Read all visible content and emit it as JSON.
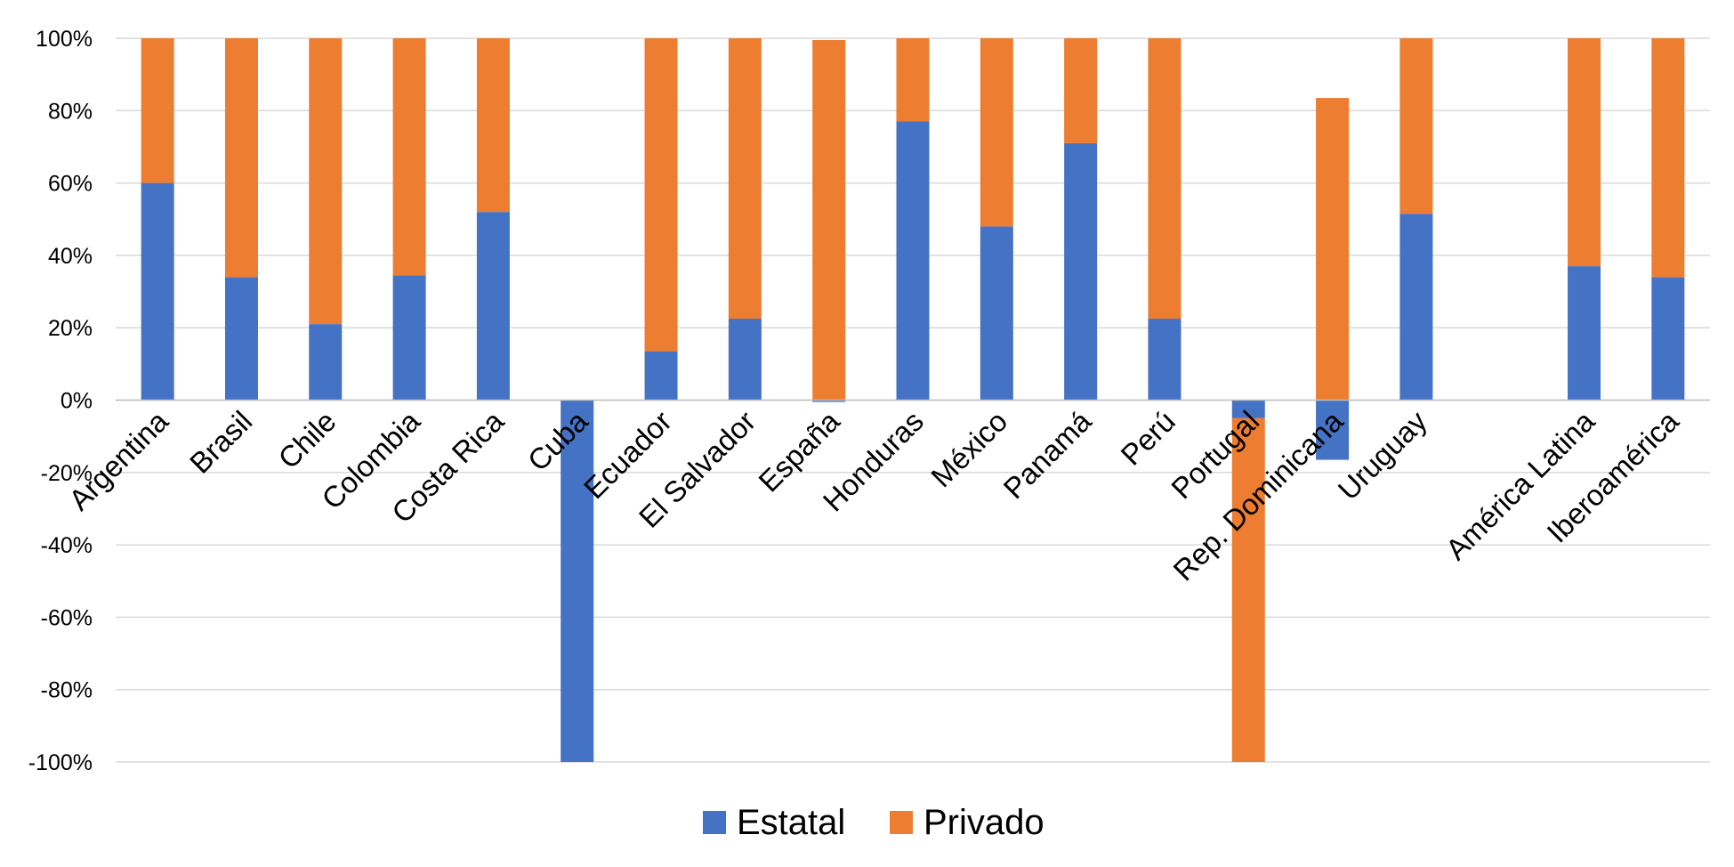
{
  "chart_data": {
    "type": "bar",
    "stacked": true,
    "title": "",
    "xlabel": "",
    "ylabel": "",
    "ylim": [
      -100,
      100
    ],
    "y_ticks": [
      100,
      80,
      60,
      40,
      20,
      0,
      -20,
      -40,
      -60,
      -80,
      -100
    ],
    "y_tick_labels": [
      "100%",
      "80%",
      "60%",
      "40%",
      "20%",
      "0%",
      "-20%",
      "-40%",
      "-60%",
      "-80%",
      "-100%"
    ],
    "grid": true,
    "legend_position": "bottom-center",
    "categories": [
      "Argentina",
      "Brasil",
      "Chile",
      "Colombia",
      "Costa Rica",
      "Cuba",
      "Ecuador",
      "El Salvador",
      "España",
      "Honduras",
      "México",
      "Panamá",
      "Perú",
      "Portugal",
      "Rep. Dominicana",
      "Uruguay",
      "",
      "América Latina",
      "Iberoamérica"
    ],
    "series": [
      {
        "name": "Estatal",
        "color": "#4472C4",
        "values": [
          60,
          34,
          21,
          34.5,
          52,
          -100,
          13.5,
          22.5,
          -0.5,
          77,
          48,
          71,
          22.5,
          -5,
          -16.5,
          51.5,
          null,
          37,
          34
        ]
      },
      {
        "name": "Privado",
        "color": "#ED7D31",
        "values": [
          40,
          66,
          79,
          65.5,
          48,
          0,
          86.5,
          77.5,
          99.5,
          23,
          52,
          29,
          77.5,
          -95,
          83.5,
          48.5,
          null,
          63,
          66
        ]
      }
    ]
  }
}
